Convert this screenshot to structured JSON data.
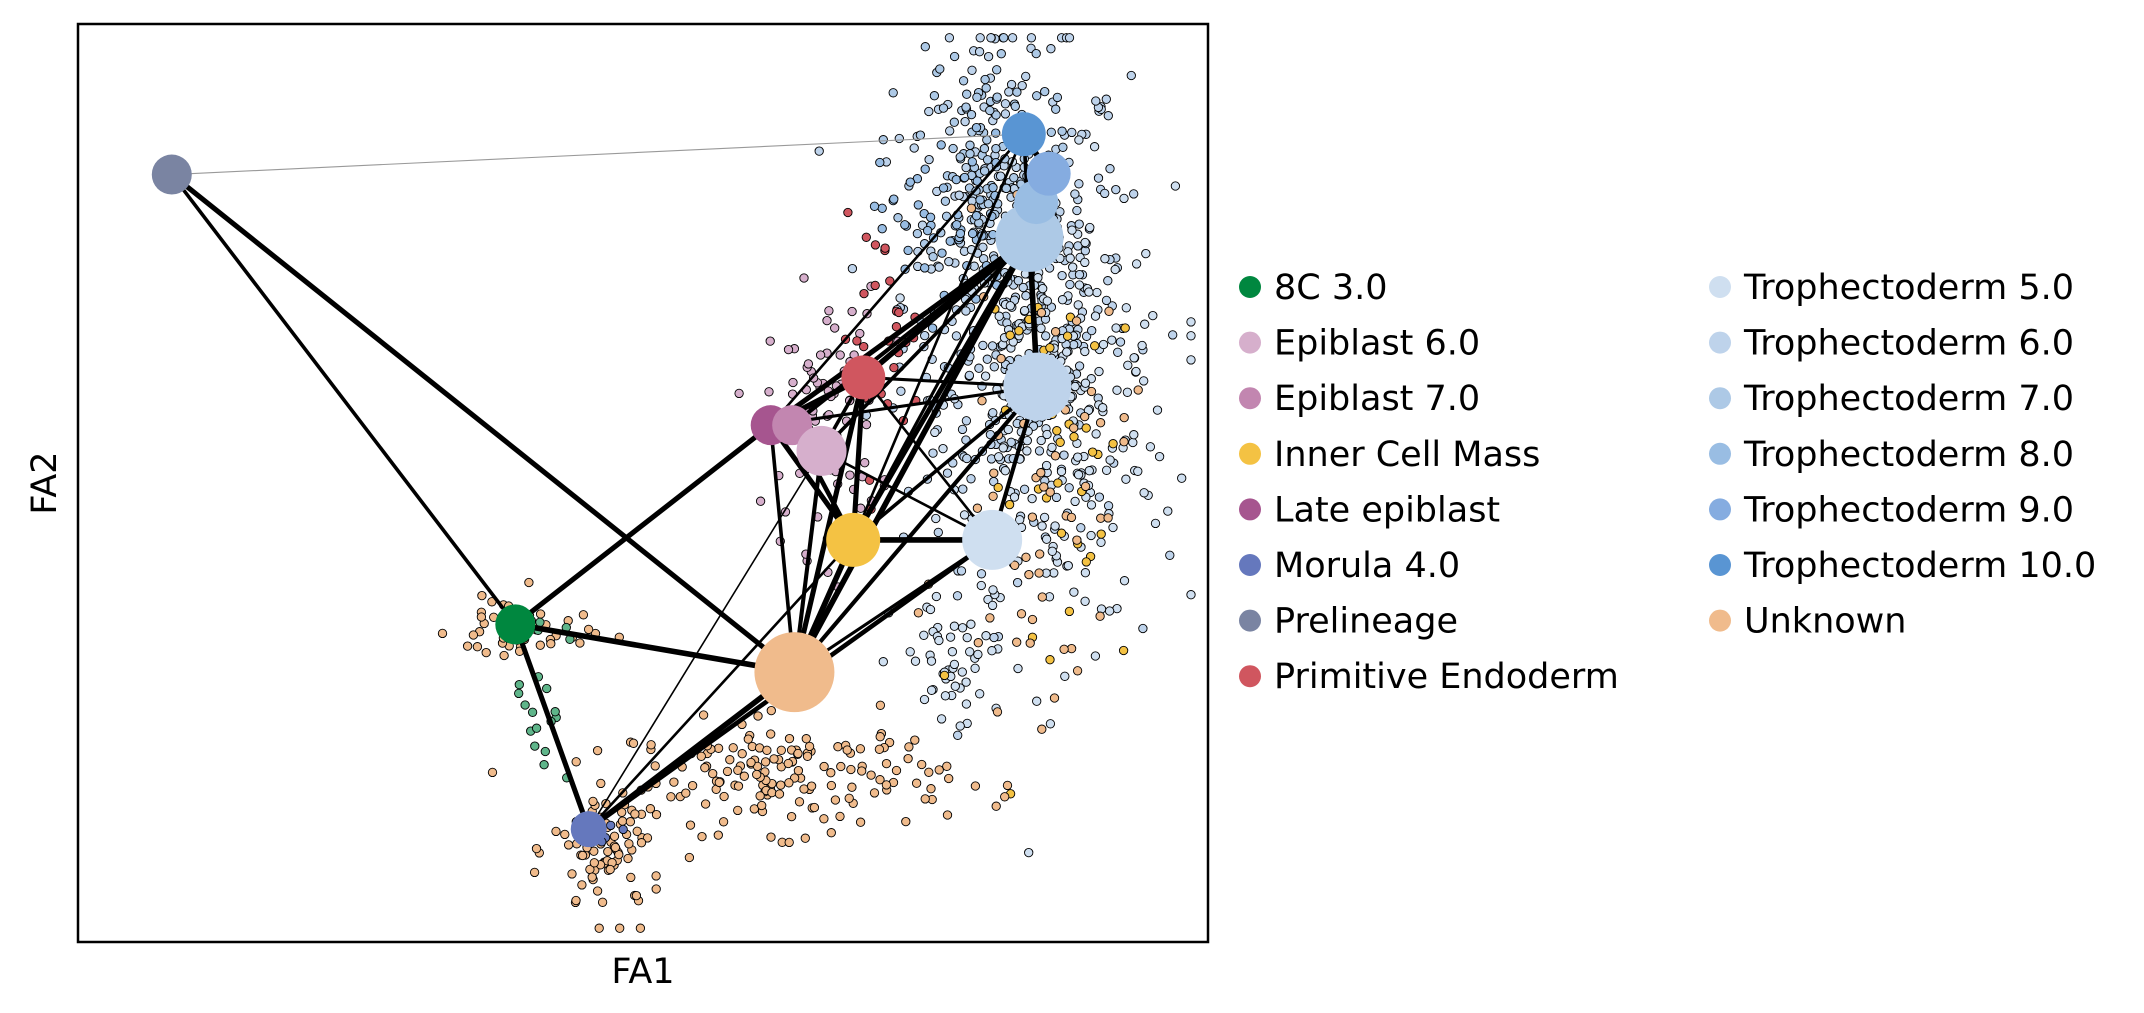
{
  "chart_data": {
    "type": "scatter",
    "title": "",
    "xlabel": "FA1",
    "ylabel": "FA2",
    "xlim": [
      0,
      100
    ],
    "ylim": [
      0,
      100
    ],
    "xticks": [],
    "yticks": [],
    "grid": false,
    "legend_placement": "right, outside plot, two columns",
    "legend": [
      {
        "label": "8C 3.0",
        "color": "#00873f"
      },
      {
        "label": "Epiblast 6.0",
        "color": "#d6afcc"
      },
      {
        "label": "Epiblast 7.0",
        "color": "#c286b0"
      },
      {
        "label": "Inner Cell Mass",
        "color": "#f4c243"
      },
      {
        "label": "Late epiblast",
        "color": "#a6558f"
      },
      {
        "label": "Morula 4.0",
        "color": "#6578bd"
      },
      {
        "label": "Prelineage",
        "color": "#7a84a2"
      },
      {
        "label": "Primitive Endoderm",
        "color": "#d0565f"
      },
      {
        "label": "Trophectoderm 5.0",
        "color": "#cfdff0"
      },
      {
        "label": "Trophectoderm 6.0",
        "color": "#bed3eb"
      },
      {
        "label": "Trophectoderm 7.0",
        "color": "#adc9e6"
      },
      {
        "label": "Trophectoderm 8.0",
        "color": "#99bde3"
      },
      {
        "label": "Trophectoderm 9.0",
        "color": "#85ace0"
      },
      {
        "label": "Trophectoderm 10.0",
        "color": "#5995d3"
      },
      {
        "label": "Unknown",
        "color": "#f0bb8c"
      }
    ],
    "nodes": [
      {
        "name": "Prelineage",
        "x": 8.3,
        "y": 83.6,
        "size": 20,
        "color": "#7a84a2"
      },
      {
        "name": "8C 3.0",
        "x": 38.7,
        "y": 34.6,
        "size": 20,
        "color": "#00873f"
      },
      {
        "name": "Morula 4.0",
        "x": 45.2,
        "y": 12.3,
        "size": 18,
        "color": "#6578bd"
      },
      {
        "name": "Unknown",
        "x": 63.4,
        "y": 29.4,
        "size": 40,
        "color": "#f0bb8c"
      },
      {
        "name": "Inner Cell Mass",
        "x": 68.6,
        "y": 43.8,
        "size": 27,
        "color": "#f4c243"
      },
      {
        "name": "Primitive Endoderm",
        "x": 69.5,
        "y": 61.5,
        "size": 22,
        "color": "#d0565f"
      },
      {
        "name": "Late epiblast",
        "x": 61.3,
        "y": 56.3,
        "size": 20,
        "color": "#a6558f"
      },
      {
        "name": "Epiblast 7.0",
        "x": 63.2,
        "y": 56.3,
        "size": 20,
        "color": "#c286b0"
      },
      {
        "name": "Epiblast 6.0",
        "x": 65.8,
        "y": 53.5,
        "size": 25,
        "color": "#d6afcc"
      },
      {
        "name": "Trophectoderm 5.0",
        "x": 80.9,
        "y": 43.8,
        "size": 30,
        "color": "#cfdff0"
      },
      {
        "name": "Trophectoderm 6.0",
        "x": 84.9,
        "y": 60.5,
        "size": 34,
        "color": "#bed3eb"
      },
      {
        "name": "Trophectoderm 7.0",
        "x": 84.2,
        "y": 76.7,
        "size": 34,
        "color": "#adc9e6"
      },
      {
        "name": "Trophectoderm 8.0",
        "x": 84.8,
        "y": 80.6,
        "size": 22,
        "color": "#99bde3"
      },
      {
        "name": "Trophectoderm 9.0",
        "x": 85.9,
        "y": 83.7,
        "size": 22,
        "color": "#85ace0"
      },
      {
        "name": "Trophectoderm 10.0",
        "x": 83.7,
        "y": 88.0,
        "size": 22,
        "color": "#5995d3"
      }
    ],
    "edges": [
      {
        "from": "Prelineage",
        "to": "8C 3.0",
        "weight": 0.6
      },
      {
        "from": "Prelineage",
        "to": "Unknown",
        "weight": 0.9
      },
      {
        "from": "Prelineage",
        "to": "Trophectoderm 10.0",
        "weight": 0.1
      },
      {
        "from": "8C 3.0",
        "to": "Morula 4.0",
        "weight": 0.9
      },
      {
        "from": "8C 3.0",
        "to": "Unknown",
        "weight": 1.0
      },
      {
        "from": "8C 3.0",
        "to": "Late epiblast",
        "weight": 0.9
      },
      {
        "from": "Morula 4.0",
        "to": "Unknown",
        "weight": 1.0
      },
      {
        "from": "Morula 4.0",
        "to": "Inner Cell Mass",
        "weight": 0.4
      },
      {
        "from": "Morula 4.0",
        "to": "Epiblast 6.0",
        "weight": 0.2
      },
      {
        "from": "Morula 4.0",
        "to": "Trophectoderm 5.0",
        "weight": 0.8
      },
      {
        "from": "Unknown",
        "to": "Inner Cell Mass",
        "weight": 1.0
      },
      {
        "from": "Unknown",
        "to": "Primitive Endoderm",
        "weight": 0.9
      },
      {
        "from": "Unknown",
        "to": "Late epiblast",
        "weight": 0.6
      },
      {
        "from": "Unknown",
        "to": "Epiblast 6.0",
        "weight": 0.7
      },
      {
        "from": "Unknown",
        "to": "Trophectoderm 5.0",
        "weight": 0.5
      },
      {
        "from": "Unknown",
        "to": "Trophectoderm 6.0",
        "weight": 0.7
      },
      {
        "from": "Unknown",
        "to": "Trophectoderm 7.0",
        "weight": 1.0
      },
      {
        "from": "Inner Cell Mass",
        "to": "Primitive Endoderm",
        "weight": 0.9
      },
      {
        "from": "Inner Cell Mass",
        "to": "Late epiblast",
        "weight": 0.9
      },
      {
        "from": "Inner Cell Mass",
        "to": "Epiblast 7.0",
        "weight": 0.8
      },
      {
        "from": "Inner Cell Mass",
        "to": "Trophectoderm 5.0",
        "weight": 1.0
      },
      {
        "from": "Inner Cell Mass",
        "to": "Trophectoderm 6.0",
        "weight": 0.6
      },
      {
        "from": "Inner Cell Mass",
        "to": "Trophectoderm 7.0",
        "weight": 0.9
      },
      {
        "from": "Inner Cell Mass",
        "to": "Trophectoderm 8.0",
        "weight": 0.5
      },
      {
        "from": "Inner Cell Mass",
        "to": "Trophectoderm 10.0",
        "weight": 0.4
      },
      {
        "from": "Primitive Endoderm",
        "to": "Late epiblast",
        "weight": 1.0
      },
      {
        "from": "Primitive Endoderm",
        "to": "Epiblast 6.0",
        "weight": 0.6
      },
      {
        "from": "Primitive Endoderm",
        "to": "Trophectoderm 6.0",
        "weight": 0.5
      },
      {
        "from": "Primitive Endoderm",
        "to": "Trophectoderm 7.0",
        "weight": 1.0
      },
      {
        "from": "Primitive Endoderm",
        "to": "Trophectoderm 5.0",
        "weight": 0.4
      },
      {
        "from": "Late epiblast",
        "to": "Trophectoderm 7.0",
        "weight": 0.9
      },
      {
        "from": "Late epiblast",
        "to": "Trophectoderm 10.0",
        "weight": 0.4
      },
      {
        "from": "Late epiblast",
        "to": "Trophectoderm 6.0",
        "weight": 0.5
      },
      {
        "from": "Epiblast 7.0",
        "to": "Trophectoderm 7.0",
        "weight": 0.7
      },
      {
        "from": "Epiblast 6.0",
        "to": "Trophectoderm 7.0",
        "weight": 0.6
      },
      {
        "from": "Epiblast 6.0",
        "to": "Trophectoderm 5.0",
        "weight": 0.4
      },
      {
        "from": "Trophectoderm 5.0",
        "to": "Trophectoderm 6.0",
        "weight": 0.7
      },
      {
        "from": "Trophectoderm 6.0",
        "to": "Trophectoderm 7.0",
        "weight": 1.0
      },
      {
        "from": "Trophectoderm 7.0",
        "to": "Trophectoderm 8.0",
        "weight": 1.0
      },
      {
        "from": "Trophectoderm 8.0",
        "to": "Trophectoderm 9.0",
        "weight": 1.0
      },
      {
        "from": "Trophectoderm 9.0",
        "to": "Trophectoderm 10.0",
        "weight": 1.0
      },
      {
        "from": "Trophectoderm 7.0",
        "to": "Trophectoderm 10.0",
        "weight": 0.6
      }
    ],
    "cell_clusters": [
      {
        "label": "Trophectoderm 6.0",
        "color": "#bed3eb",
        "cx": 83,
        "cy": 70,
        "sx": 5,
        "sy": 14,
        "n": 420
      },
      {
        "label": "Trophectoderm 5.0",
        "color": "#cfdff0",
        "cx": 87,
        "cy": 58,
        "sx": 5,
        "sy": 12,
        "n": 260
      },
      {
        "label": "Trophectoderm 7.0",
        "color": "#adc9e6",
        "cx": 80,
        "cy": 86,
        "sx": 3,
        "sy": 6,
        "n": 120
      },
      {
        "label": "Trophectoderm 8.0",
        "color": "#99bde3",
        "cx": 77,
        "cy": 78,
        "sx": 3,
        "sy": 5,
        "n": 60
      },
      {
        "label": "Trophectoderm 5.0",
        "color": "#cfdff0",
        "cx": 78,
        "cy": 30,
        "sx": 3,
        "sy": 4,
        "n": 50
      },
      {
        "label": "Epiblast 6.0",
        "color": "#d6afcc",
        "cx": 66,
        "cy": 57,
        "sx": 2.5,
        "sy": 7,
        "n": 90
      },
      {
        "label": "Primitive Endoderm",
        "color": "#d0565f",
        "cx": 71,
        "cy": 66,
        "sx": 1.8,
        "sy": 6,
        "n": 30
      },
      {
        "label": "Inner Cell Mass",
        "color": "#f4c243",
        "cx": 88,
        "cy": 50,
        "sx": 4,
        "sy": 12,
        "n": 40
      },
      {
        "label": "Unknown",
        "color": "#f0bb8c",
        "cx": 63,
        "cy": 18,
        "sx": 7,
        "sy": 3,
        "n": 160
      },
      {
        "label": "Unknown",
        "color": "#f0bb8c",
        "cx": 47,
        "cy": 10,
        "sx": 2.5,
        "sy": 4,
        "n": 90
      },
      {
        "label": "Unknown",
        "color": "#f0bb8c",
        "cx": 39,
        "cy": 34,
        "sx": 3,
        "sy": 2,
        "n": 50
      },
      {
        "label": "Unknown",
        "color": "#f0bb8c",
        "cx": 85,
        "cy": 50,
        "sx": 4,
        "sy": 12,
        "n": 60
      },
      {
        "label": "8C 3.0",
        "color": "#5fb58a",
        "cx": 41,
        "cy": 27,
        "sx": 1.2,
        "sy": 5,
        "n": 20
      },
      {
        "label": "Morula 4.0",
        "color": "#6578bd",
        "cx": 46,
        "cy": 13,
        "sx": 1.5,
        "sy": 1.5,
        "n": 8
      }
    ]
  }
}
